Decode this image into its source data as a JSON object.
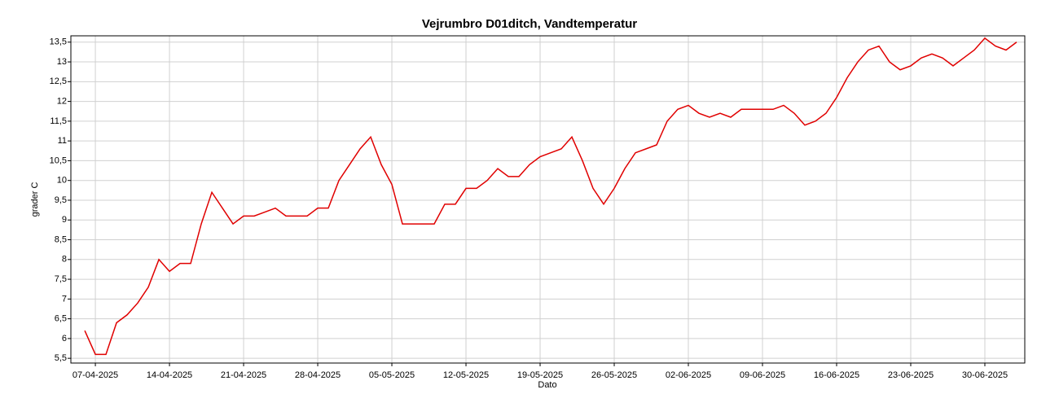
{
  "chart_data": {
    "type": "line",
    "title": "Vejrumbro D01ditch, Vandtemperatur",
    "x_label": "Dato",
    "y_label": "grader C",
    "x": [
      "2025-04-06",
      "2025-04-07",
      "2025-04-08",
      "2025-04-09",
      "2025-04-10",
      "2025-04-11",
      "2025-04-12",
      "2025-04-13",
      "2025-04-14",
      "2025-04-15",
      "2025-04-16",
      "2025-04-17",
      "2025-04-18",
      "2025-04-19",
      "2025-04-20",
      "2025-04-21",
      "2025-04-22",
      "2025-04-23",
      "2025-04-24",
      "2025-04-25",
      "2025-04-26",
      "2025-04-27",
      "2025-04-28",
      "2025-04-29",
      "2025-04-30",
      "2025-05-01",
      "2025-05-02",
      "2025-05-03",
      "2025-05-04",
      "2025-05-05",
      "2025-05-06",
      "2025-05-07",
      "2025-05-08",
      "2025-05-09",
      "2025-05-10",
      "2025-05-11",
      "2025-05-12",
      "2025-05-13",
      "2025-05-14",
      "2025-05-15",
      "2025-05-16",
      "2025-05-17",
      "2025-05-18",
      "2025-05-19",
      "2025-05-20",
      "2025-05-21",
      "2025-05-22",
      "2025-05-23",
      "2025-05-24",
      "2025-05-25",
      "2025-05-26",
      "2025-05-27",
      "2025-05-28",
      "2025-05-29",
      "2025-05-30",
      "2025-05-31",
      "2025-06-01",
      "2025-06-02",
      "2025-06-03",
      "2025-06-04",
      "2025-06-05",
      "2025-06-06",
      "2025-06-07",
      "2025-06-08",
      "2025-06-09",
      "2025-06-10",
      "2025-06-11",
      "2025-06-12",
      "2025-06-13",
      "2025-06-14",
      "2025-06-15",
      "2025-06-16",
      "2025-06-17",
      "2025-06-18",
      "2025-06-19",
      "2025-06-20",
      "2025-06-21",
      "2025-06-22",
      "2025-06-23",
      "2025-06-24",
      "2025-06-25",
      "2025-06-26",
      "2025-06-27",
      "2025-06-28",
      "2025-06-29",
      "2025-06-30",
      "2025-07-01",
      "2025-07-02",
      "2025-07-03"
    ],
    "series": [
      {
        "name": "Vandtemperatur",
        "color": "#e00000",
        "values": [
          6.2,
          5.6,
          5.6,
          6.4,
          6.6,
          6.9,
          7.3,
          8.0,
          7.7,
          7.9,
          7.9,
          8.9,
          9.7,
          9.3,
          8.9,
          9.1,
          9.1,
          9.2,
          9.3,
          9.1,
          9.1,
          9.1,
          9.3,
          9.3,
          10.0,
          10.4,
          10.8,
          11.1,
          10.4,
          9.9,
          8.9,
          8.9,
          8.9,
          8.9,
          9.4,
          9.4,
          9.8,
          9.8,
          10.0,
          10.3,
          10.1,
          10.1,
          10.4,
          10.6,
          10.7,
          10.8,
          11.1,
          10.5,
          9.8,
          9.4,
          9.8,
          10.3,
          10.7,
          10.8,
          10.9,
          11.5,
          11.8,
          11.9,
          11.7,
          11.6,
          11.7,
          11.6,
          11.8,
          11.8,
          11.8,
          11.8,
          11.9,
          11.7,
          11.4,
          11.5,
          11.7,
          12.1,
          12.6,
          13.0,
          13.3,
          13.4,
          13.0,
          12.8,
          12.9,
          13.1,
          13.2,
          13.1,
          12.9,
          13.1,
          13.3,
          13.6,
          13.4,
          13.3,
          13.5
        ]
      }
    ],
    "xlim": [
      "2025-04-04T16:30",
      "2025-07-03T18:30"
    ],
    "xticks": [
      {
        "value": "2025-04-07",
        "label": "07-04-2025"
      },
      {
        "value": "2025-04-14",
        "label": "14-04-2025"
      },
      {
        "value": "2025-04-21",
        "label": "21-04-2025"
      },
      {
        "value": "2025-04-28",
        "label": "28-04-2025"
      },
      {
        "value": "2025-05-05",
        "label": "05-05-2025"
      },
      {
        "value": "2025-05-12",
        "label": "12-05-2025"
      },
      {
        "value": "2025-05-19",
        "label": "19-05-2025"
      },
      {
        "value": "2025-05-26",
        "label": "26-05-2025"
      },
      {
        "value": "2025-06-02",
        "label": "02-06-2025"
      },
      {
        "value": "2025-06-09",
        "label": "09-06-2025"
      },
      {
        "value": "2025-06-16",
        "label": "16-06-2025"
      },
      {
        "value": "2025-06-23",
        "label": "23-06-2025"
      },
      {
        "value": "2025-06-30",
        "label": "30-06-2025"
      }
    ],
    "ylim": [
      5.38,
      13.66
    ],
    "yticks": [
      {
        "value": 5.5,
        "label": "5,5"
      },
      6,
      {
        "value": 6.5,
        "label": "6,5"
      },
      7,
      {
        "value": 7.5,
        "label": "7,5"
      },
      8,
      {
        "value": 8.5,
        "label": "8,5"
      },
      9,
      {
        "value": 9.5,
        "label": "9,5"
      },
      10,
      {
        "value": 10.5,
        "label": "10,5"
      },
      11,
      {
        "value": 11.5,
        "label": "11,5"
      },
      12,
      {
        "value": 12.5,
        "label": "12,5"
      },
      13,
      {
        "value": 13.5,
        "label": "13,5"
      }
    ],
    "grid": true
  }
}
